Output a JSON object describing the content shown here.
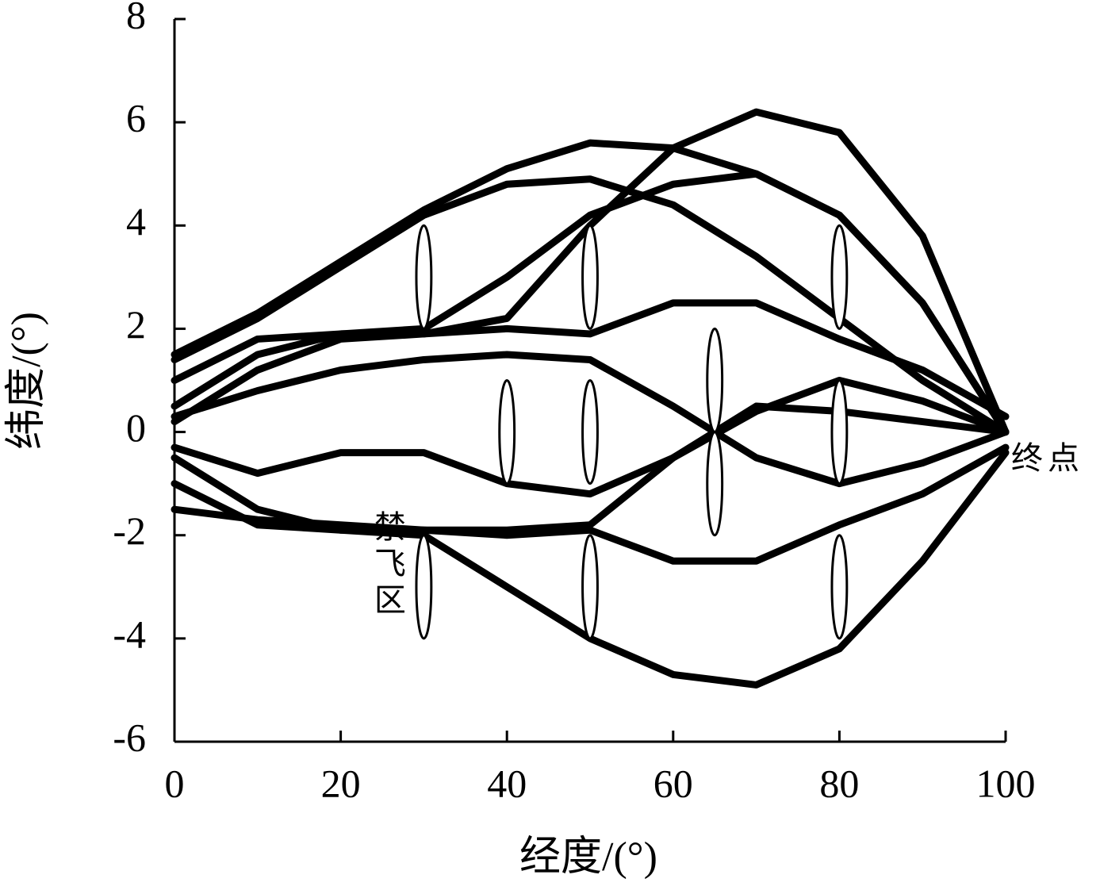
{
  "chart_data": {
    "type": "line",
    "xlabel": "经度/(°)",
    "ylabel": "纬度/(°)",
    "xlim": [
      0,
      100
    ],
    "ylim": [
      -6,
      8
    ],
    "xticks": [
      0,
      20,
      40,
      60,
      80,
      100
    ],
    "yticks": [
      -6,
      -4,
      -2,
      0,
      2,
      4,
      6,
      8
    ],
    "x": [
      0,
      10,
      20,
      30,
      40,
      50,
      60,
      70,
      80,
      90,
      100
    ],
    "series": [
      {
        "color": "#000000",
        "values": [
          1.5,
          2.3,
          3.3,
          4.3,
          5.1,
          5.6,
          5.5,
          5.0,
          4.2,
          2.5,
          0
        ]
      },
      {
        "color": "#000000",
        "values": [
          1.4,
          2.2,
          3.2,
          4.2,
          4.8,
          4.9,
          4.4,
          3.4,
          2.2,
          1.0,
          0
        ]
      },
      {
        "color": "#000000",
        "values": [
          0.5,
          1.5,
          1.9,
          2.0,
          3.0,
          4.2,
          4.8,
          5.0,
          4.2,
          2.5,
          0
        ]
      },
      {
        "color": "#000000",
        "values": [
          0.2,
          1.2,
          1.8,
          1.9,
          2.2,
          4.0,
          5.5,
          6.2,
          5.8,
          3.8,
          0
        ]
      },
      {
        "color": "#000000",
        "values": [
          1.0,
          1.8,
          1.9,
          1.9,
          2.0,
          1.9,
          2.5,
          2.5,
          1.8,
          1.2,
          0.3
        ]
      },
      {
        "color": "#000000",
        "values": [
          0.3,
          0.8,
          1.2,
          1.4,
          1.5,
          1.4,
          0.5,
          -0.5,
          -1.0,
          -0.6,
          0
        ]
      },
      {
        "color": "#000000",
        "values": [
          -0.3,
          -0.8,
          -0.4,
          -0.4,
          -1.0,
          -1.2,
          -0.5,
          0.4,
          1.0,
          0.6,
          0
        ]
      },
      {
        "color": "#000000",
        "values": [
          -1.0,
          -1.8,
          -1.9,
          -1.9,
          -2.0,
          -1.9,
          -2.5,
          -2.5,
          -1.8,
          -1.2,
          -0.3
        ]
      },
      {
        "color": "#000000",
        "values": [
          -0.5,
          -1.5,
          -1.9,
          -2.0,
          -3.0,
          -4.0,
          -4.7,
          -4.9,
          -4.2,
          -2.5,
          -0.4
        ]
      },
      {
        "color": "#000000",
        "values": [
          -1.5,
          -1.7,
          -1.8,
          -1.9,
          -1.9,
          -1.8,
          -0.5,
          0.5,
          0.4,
          0.2,
          0
        ]
      }
    ],
    "zones": [
      {
        "x": 30,
        "y": 3,
        "rx": 0.9,
        "ry": 1
      },
      {
        "x": 30,
        "y": -3,
        "rx": 0.9,
        "ry": 1
      },
      {
        "x": 40,
        "y": 0,
        "rx": 0.9,
        "ry": 1
      },
      {
        "x": 50,
        "y": 3,
        "rx": 0.9,
        "ry": 1
      },
      {
        "x": 50,
        "y": 0,
        "rx": 0.9,
        "ry": 1
      },
      {
        "x": 50,
        "y": -3,
        "rx": 0.9,
        "ry": 1
      },
      {
        "x": 65,
        "y": 1,
        "rx": 0.9,
        "ry": 1
      },
      {
        "x": 65,
        "y": -1,
        "rx": 0.9,
        "ry": 1
      },
      {
        "x": 80,
        "y": 3,
        "rx": 0.9,
        "ry": 1
      },
      {
        "x": 80,
        "y": 0,
        "rx": 0.9,
        "ry": 1
      },
      {
        "x": 80,
        "y": -3,
        "rx": 0.9,
        "ry": 1
      }
    ],
    "annotations": [
      "禁飞区",
      "终点"
    ]
  }
}
